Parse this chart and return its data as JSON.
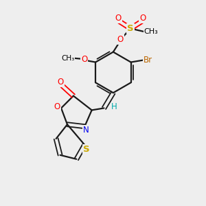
{
  "bg_color": "#eeeeee",
  "colors": {
    "bond": "#1a1a1a",
    "O": "#ff0000",
    "N": "#0000ee",
    "S": "#ccaa00",
    "Br": "#bb6600",
    "H": "#00aaaa"
  },
  "figsize": [
    3.0,
    3.0
  ],
  "dpi": 100
}
